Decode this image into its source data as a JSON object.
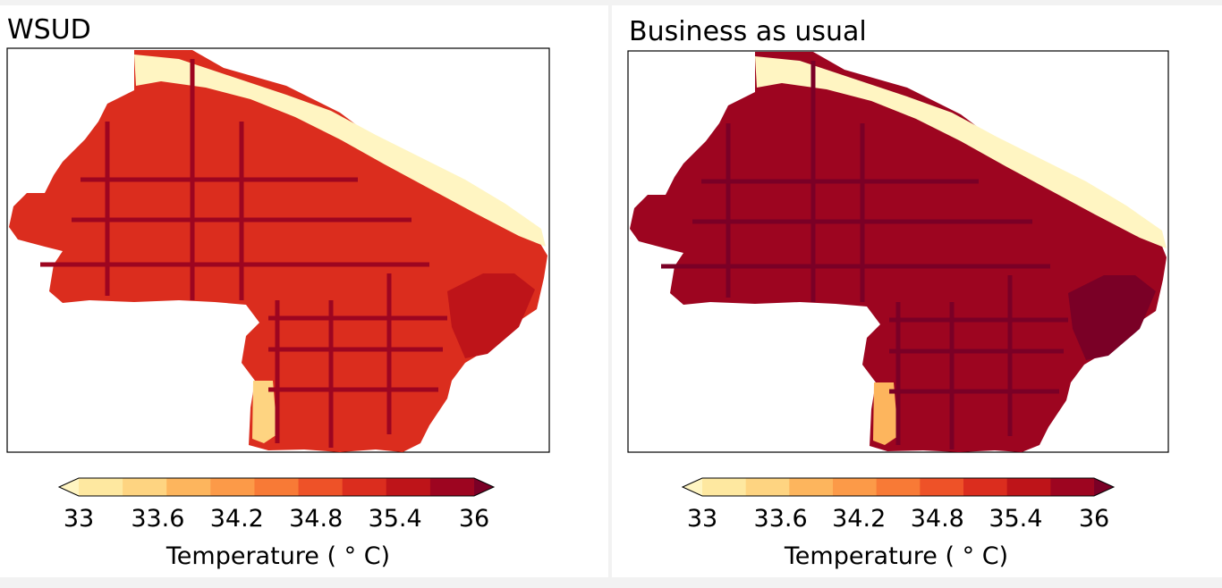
{
  "chart_data": [
    {
      "type": "heatmap",
      "title": "WSUD",
      "colorbar": {
        "label": "Temperature ( $^\\circ$C)",
        "label_text": "Temperature ( ° C)",
        "min": 33,
        "max": 36,
        "step": 0.3,
        "ticks": [
          "33",
          "33.6",
          "34.2",
          "34.8",
          "35.4",
          "36"
        ],
        "extend": "both",
        "colors": [
          "#fff5c2",
          "#fee8a0",
          "#fed481",
          "#fdb55d",
          "#fc9a48",
          "#f87a36",
          "#ee5228",
          "#db2d1e",
          "#be1419",
          "#9d0520",
          "#7a0026"
        ]
      },
      "dominant_range": "34.8–35.4"
    },
    {
      "type": "heatmap",
      "title": "Business as usual",
      "colorbar": {
        "label": "Temperature ( $^\\circ$C)",
        "label_text": "Temperature ( ° C)",
        "min": 33,
        "max": 36,
        "step": 0.3,
        "ticks": [
          "33",
          "33.6",
          "34.2",
          "34.8",
          "35.4",
          "36"
        ],
        "extend": "both",
        "colors": [
          "#fff5c2",
          "#fee8a0",
          "#fed481",
          "#fdb55d",
          "#fc9a48",
          "#f87a36",
          "#ee5228",
          "#db2d1e",
          "#be1419",
          "#9d0520",
          "#7a0026"
        ]
      },
      "dominant_range": "35.4–36"
    }
  ]
}
